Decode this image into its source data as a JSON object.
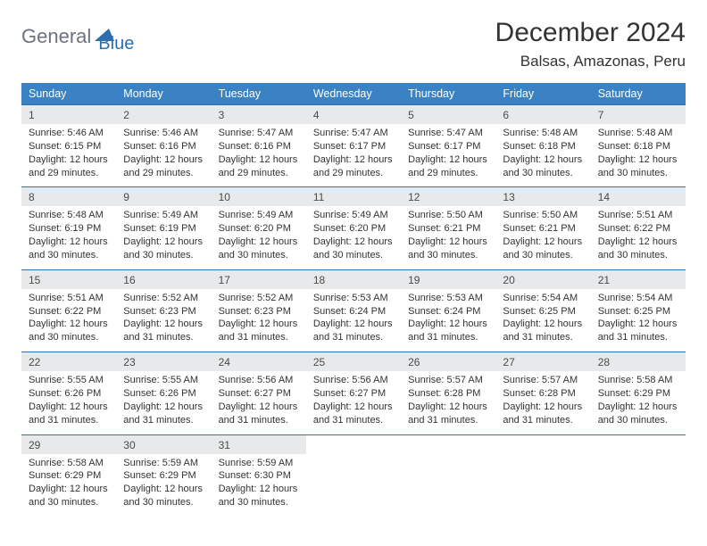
{
  "logo": {
    "text1": "General",
    "text2": "Blue"
  },
  "title": "December 2024",
  "location": "Balsas, Amazonas, Peru",
  "colors": {
    "header_bar": "#3b82c4",
    "header_text": "#ffffff",
    "daynum_bg": "#e8e9ea",
    "row_border": "#2f6fb0",
    "body_text": "#333333",
    "logo_gray": "#6b7280",
    "logo_blue": "#2f6fb0",
    "background": "#ffffff"
  },
  "day_names": [
    "Sunday",
    "Monday",
    "Tuesday",
    "Wednesday",
    "Thursday",
    "Friday",
    "Saturday"
  ],
  "weeks": [
    [
      {
        "n": "1",
        "sr": "5:46 AM",
        "ss": "6:15 PM",
        "dh": "12",
        "dm": "29"
      },
      {
        "n": "2",
        "sr": "5:46 AM",
        "ss": "6:16 PM",
        "dh": "12",
        "dm": "29"
      },
      {
        "n": "3",
        "sr": "5:47 AM",
        "ss": "6:16 PM",
        "dh": "12",
        "dm": "29"
      },
      {
        "n": "4",
        "sr": "5:47 AM",
        "ss": "6:17 PM",
        "dh": "12",
        "dm": "29"
      },
      {
        "n": "5",
        "sr": "5:47 AM",
        "ss": "6:17 PM",
        "dh": "12",
        "dm": "29"
      },
      {
        "n": "6",
        "sr": "5:48 AM",
        "ss": "6:18 PM",
        "dh": "12",
        "dm": "30"
      },
      {
        "n": "7",
        "sr": "5:48 AM",
        "ss": "6:18 PM",
        "dh": "12",
        "dm": "30"
      }
    ],
    [
      {
        "n": "8",
        "sr": "5:48 AM",
        "ss": "6:19 PM",
        "dh": "12",
        "dm": "30"
      },
      {
        "n": "9",
        "sr": "5:49 AM",
        "ss": "6:19 PM",
        "dh": "12",
        "dm": "30"
      },
      {
        "n": "10",
        "sr": "5:49 AM",
        "ss": "6:20 PM",
        "dh": "12",
        "dm": "30"
      },
      {
        "n": "11",
        "sr": "5:49 AM",
        "ss": "6:20 PM",
        "dh": "12",
        "dm": "30"
      },
      {
        "n": "12",
        "sr": "5:50 AM",
        "ss": "6:21 PM",
        "dh": "12",
        "dm": "30"
      },
      {
        "n": "13",
        "sr": "5:50 AM",
        "ss": "6:21 PM",
        "dh": "12",
        "dm": "30"
      },
      {
        "n": "14",
        "sr": "5:51 AM",
        "ss": "6:22 PM",
        "dh": "12",
        "dm": "30"
      }
    ],
    [
      {
        "n": "15",
        "sr": "5:51 AM",
        "ss": "6:22 PM",
        "dh": "12",
        "dm": "30"
      },
      {
        "n": "16",
        "sr": "5:52 AM",
        "ss": "6:23 PM",
        "dh": "12",
        "dm": "31"
      },
      {
        "n": "17",
        "sr": "5:52 AM",
        "ss": "6:23 PM",
        "dh": "12",
        "dm": "31"
      },
      {
        "n": "18",
        "sr": "5:53 AM",
        "ss": "6:24 PM",
        "dh": "12",
        "dm": "31"
      },
      {
        "n": "19",
        "sr": "5:53 AM",
        "ss": "6:24 PM",
        "dh": "12",
        "dm": "31"
      },
      {
        "n": "20",
        "sr": "5:54 AM",
        "ss": "6:25 PM",
        "dh": "12",
        "dm": "31"
      },
      {
        "n": "21",
        "sr": "5:54 AM",
        "ss": "6:25 PM",
        "dh": "12",
        "dm": "31"
      }
    ],
    [
      {
        "n": "22",
        "sr": "5:55 AM",
        "ss": "6:26 PM",
        "dh": "12",
        "dm": "31"
      },
      {
        "n": "23",
        "sr": "5:55 AM",
        "ss": "6:26 PM",
        "dh": "12",
        "dm": "31"
      },
      {
        "n": "24",
        "sr": "5:56 AM",
        "ss": "6:27 PM",
        "dh": "12",
        "dm": "31"
      },
      {
        "n": "25",
        "sr": "5:56 AM",
        "ss": "6:27 PM",
        "dh": "12",
        "dm": "31"
      },
      {
        "n": "26",
        "sr": "5:57 AM",
        "ss": "6:28 PM",
        "dh": "12",
        "dm": "31"
      },
      {
        "n": "27",
        "sr": "5:57 AM",
        "ss": "6:28 PM",
        "dh": "12",
        "dm": "31"
      },
      {
        "n": "28",
        "sr": "5:58 AM",
        "ss": "6:29 PM",
        "dh": "12",
        "dm": "30"
      }
    ],
    [
      {
        "n": "29",
        "sr": "5:58 AM",
        "ss": "6:29 PM",
        "dh": "12",
        "dm": "30"
      },
      {
        "n": "30",
        "sr": "5:59 AM",
        "ss": "6:29 PM",
        "dh": "12",
        "dm": "30"
      },
      {
        "n": "31",
        "sr": "5:59 AM",
        "ss": "6:30 PM",
        "dh": "12",
        "dm": "30"
      },
      null,
      null,
      null,
      null
    ]
  ]
}
